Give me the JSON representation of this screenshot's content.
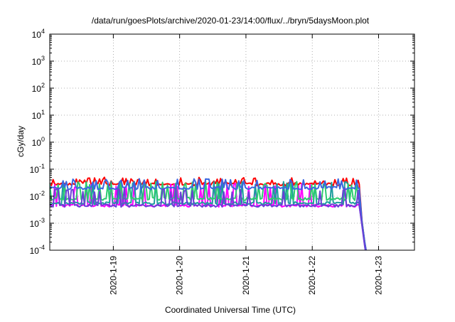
{
  "chart_data": {
    "type": "line",
    "title": "/data/run/goesPlots/archive/2020-01-23/14:00/flux/../bryn/5daysMoon.plot",
    "xlabel": "Coordinated Universal Time (UTC)",
    "ylabel": "cGy/day",
    "y_scale": "log",
    "ylim": [
      0.0001,
      10000
    ],
    "y_ticks": [
      {
        "value": 0.0001,
        "base": "10",
        "exp": "-4"
      },
      {
        "value": 0.001,
        "base": "10",
        "exp": "-3"
      },
      {
        "value": 0.01,
        "base": "10",
        "exp": "-2"
      },
      {
        "value": 0.1,
        "base": "10",
        "exp": "-1"
      },
      {
        "value": 1,
        "base": "10",
        "exp": "0"
      },
      {
        "value": 10,
        "base": "10",
        "exp": "1"
      },
      {
        "value": 100,
        "base": "10",
        "exp": "2"
      },
      {
        "value": 1000,
        "base": "10",
        "exp": "3"
      },
      {
        "value": 10000,
        "base": "10",
        "exp": "4"
      }
    ],
    "xlim": [
      "2020-01-18 01:00",
      "2020-01-23 13:00"
    ],
    "x_ticks": [
      "2020-1-19",
      "2020-1-20",
      "2020-1-21",
      "2020-1-22",
      "2020-1-23"
    ],
    "grid": true,
    "series": [
      {
        "color": "#ff0000",
        "base": 0.028,
        "spike": 0.05,
        "x": [
          "2020-01-18 01:00",
          "2020-01-20 12:00",
          "2020-01-22 17:00",
          "2020-01-22 18:00",
          "2020-01-22 19:00",
          "2020-01-22 20:00"
        ],
        "values": [
          0.028,
          0.028,
          0.028,
          0.0012,
          0.0002,
          5e-05
        ]
      },
      {
        "color": "#ff00ff",
        "base": 0.0045,
        "spike": 0.03,
        "x": [
          "2020-01-18 01:00",
          "2020-01-20 12:00",
          "2020-01-22 17:00",
          "2020-01-22 18:00",
          "2020-01-22 19:00",
          "2020-01-22 20:00"
        ],
        "values": [
          0.0045,
          0.0045,
          0.0045,
          0.0009,
          0.00015,
          4e-05
        ]
      },
      {
        "color": "#1e9e9e",
        "base": 0.0055,
        "spike": 0.035,
        "x": [
          "2020-01-18 01:00",
          "2020-01-20 12:00",
          "2020-01-22 17:00",
          "2020-01-22 18:00",
          "2020-01-22 19:00",
          "2020-01-22 20:00"
        ],
        "values": [
          0.0055,
          0.0055,
          0.0055,
          0.001,
          0.00018,
          4e-05
        ]
      },
      {
        "color": "#2ecc71",
        "base": 0.008,
        "spike": 0.035,
        "x": [
          "2020-01-18 01:00",
          "2020-01-20 12:00",
          "2020-01-22 17:00",
          "2020-01-22 18:00",
          "2020-01-22 19:00",
          "2020-01-22 20:00"
        ],
        "values": [
          0.008,
          0.008,
          0.008,
          0.0011,
          0.0002,
          4e-05
        ]
      },
      {
        "color": "#3a66e0",
        "base": 0.02,
        "spike": 0.045,
        "x": [
          "2020-01-18 01:00",
          "2020-01-20 12:00",
          "2020-01-22 17:00",
          "2020-01-22 18:00",
          "2020-01-22 19:00",
          "2020-01-22 20:00"
        ],
        "values": [
          0.02,
          0.02,
          0.02,
          0.0011,
          0.0002,
          5e-05
        ]
      },
      {
        "color": "#6a3fd6",
        "base": 0.0045,
        "spike": 0.02,
        "x": [
          "2020-01-18 01:00",
          "2020-01-20 12:00",
          "2020-01-22 17:00",
          "2020-01-22 18:00",
          "2020-01-22 19:00",
          "2020-01-22 20:00"
        ],
        "values": [
          0.0045,
          0.0045,
          0.0045,
          0.0008,
          0.00014,
          3e-05
        ]
      }
    ]
  }
}
